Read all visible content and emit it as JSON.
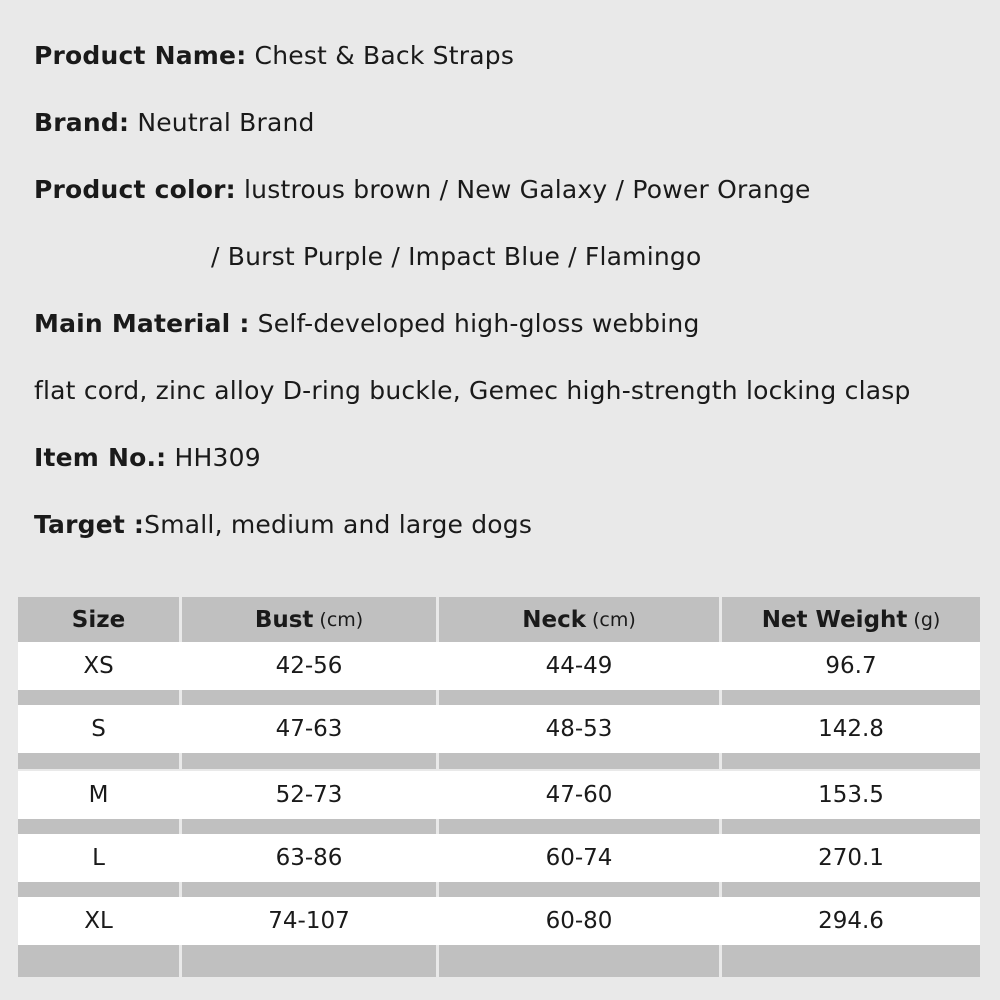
{
  "specs": {
    "product_name": {
      "label": "Product Name:",
      "value": "Chest & Back Straps"
    },
    "brand": {
      "label": "Brand:",
      "value": "Neutral Brand"
    },
    "product_color": {
      "label": "Product color:",
      "value": "lustrous brown / New Galaxy / Power Orange",
      "value_line2": "/ Burst Purple / Impact Blue / Flamingo"
    },
    "main_material": {
      "label": "Main Material :",
      "value": "Self-developed high-gloss webbing",
      "value_line2": "flat cord, zinc alloy D-ring buckle, Gemec high-strength locking clasp"
    },
    "item_no": {
      "label": "Item No.:",
      "value": "HH309"
    },
    "target": {
      "label": "Target :",
      "value": "Small, medium and large dogs"
    }
  },
  "size_table": {
    "headers": [
      {
        "label": "Size",
        "unit": ""
      },
      {
        "label": "Bust",
        "unit": "(cm)"
      },
      {
        "label": "Neck",
        "unit": "(cm)"
      },
      {
        "label": "Net Weight",
        "unit": "(g)"
      }
    ],
    "rows": [
      [
        "XS",
        "42-56",
        "44-49",
        "96.7"
      ],
      [
        "S",
        "47-63",
        "48-53",
        "142.8"
      ],
      [
        "M",
        "52-73",
        "47-60",
        "153.5"
      ],
      [
        "L",
        "63-86",
        "60-74",
        "270.1"
      ],
      [
        "XL",
        "74-107",
        "60-80",
        "294.6"
      ]
    ]
  }
}
